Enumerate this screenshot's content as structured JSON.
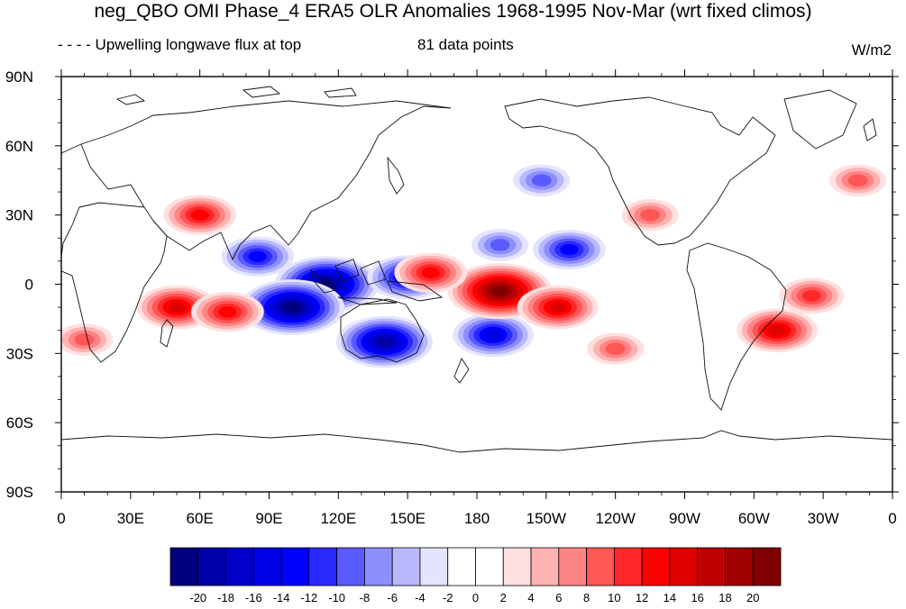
{
  "title": "neg_QBO OMI Phase_4 ERA5 OLR Anomalies 1968-1995 Nov-Mar (wrt fixed climos)",
  "subtitle_left": "- - - - Upwelling longwave flux at top",
  "subtitle_center": "81 data points",
  "units": "W/m2",
  "lat_labels": [
    "90N",
    "60N",
    "30N",
    "0",
    "30S",
    "60S",
    "90S"
  ],
  "lon_labels": [
    "0",
    "30E",
    "60E",
    "90E",
    "120E",
    "150E",
    "180",
    "150W",
    "120W",
    "90W",
    "60W",
    "30W",
    "0"
  ],
  "colorbar": {
    "labels": [
      "-20",
      "-18",
      "-16",
      "-14",
      "-12",
      "-10",
      "-8",
      "-6",
      "-4",
      "-2",
      "0",
      "2",
      "4",
      "6",
      "8",
      "10",
      "12",
      "14",
      "16",
      "18",
      "20"
    ],
    "colors": [
      "#00007f",
      "#0000a8",
      "#0000c8",
      "#0000e4",
      "#0000ff",
      "#2a2aff",
      "#5a5aff",
      "#8e8eff",
      "#b8b8ff",
      "#e4e4ff",
      "#ffffff",
      "#ffffff",
      "#ffe0e0",
      "#ffb2b2",
      "#ff8484",
      "#ff5656",
      "#ff2828",
      "#ff0000",
      "#e00000",
      "#c00000",
      "#a00000",
      "#7f0000"
    ]
  },
  "chart_data": {
    "type": "heatmap",
    "title": "neg_QBO OMI Phase_4 ERA5 OLR Anomalies 1968-1995 Nov-Mar (wrt fixed climos)",
    "units": "W/m2",
    "xlim": [
      0,
      360
    ],
    "ylim": [
      -90,
      90
    ],
    "levels": [
      -20,
      -18,
      -16,
      -14,
      -12,
      -10,
      -8,
      -6,
      -4,
      -2,
      0,
      2,
      4,
      6,
      8,
      10,
      12,
      14,
      16,
      18,
      20
    ],
    "anomaly_centers": [
      {
        "lon": 115,
        "lat": 0,
        "value": -20
      },
      {
        "lon": 100,
        "lat": -10,
        "value": -20
      },
      {
        "lon": 140,
        "lat": -25,
        "value": -18
      },
      {
        "lon": 150,
        "lat": 3,
        "value": -14
      },
      {
        "lon": 85,
        "lat": 12,
        "value": -12
      },
      {
        "lon": 187,
        "lat": -22,
        "value": -14
      },
      {
        "lon": 220,
        "lat": 15,
        "value": -12
      },
      {
        "lon": 190,
        "lat": 17,
        "value": -8
      },
      {
        "lon": 208,
        "lat": 45,
        "value": -8
      },
      {
        "lon": 190,
        "lat": -3,
        "value": 20
      },
      {
        "lon": 215,
        "lat": -10,
        "value": 14
      },
      {
        "lon": 160,
        "lat": 5,
        "value": 12
      },
      {
        "lon": 50,
        "lat": -10,
        "value": 14
      },
      {
        "lon": 72,
        "lat": -12,
        "value": 12
      },
      {
        "lon": 60,
        "lat": 30,
        "value": 12
      },
      {
        "lon": 310,
        "lat": -20,
        "value": 14
      },
      {
        "lon": 325,
        "lat": -5,
        "value": 10
      },
      {
        "lon": 240,
        "lat": -28,
        "value": 8
      },
      {
        "lon": 10,
        "lat": -24,
        "value": 8
      },
      {
        "lon": 255,
        "lat": 30,
        "value": 8
      },
      {
        "lon": 345,
        "lat": 45,
        "value": 8
      }
    ]
  }
}
